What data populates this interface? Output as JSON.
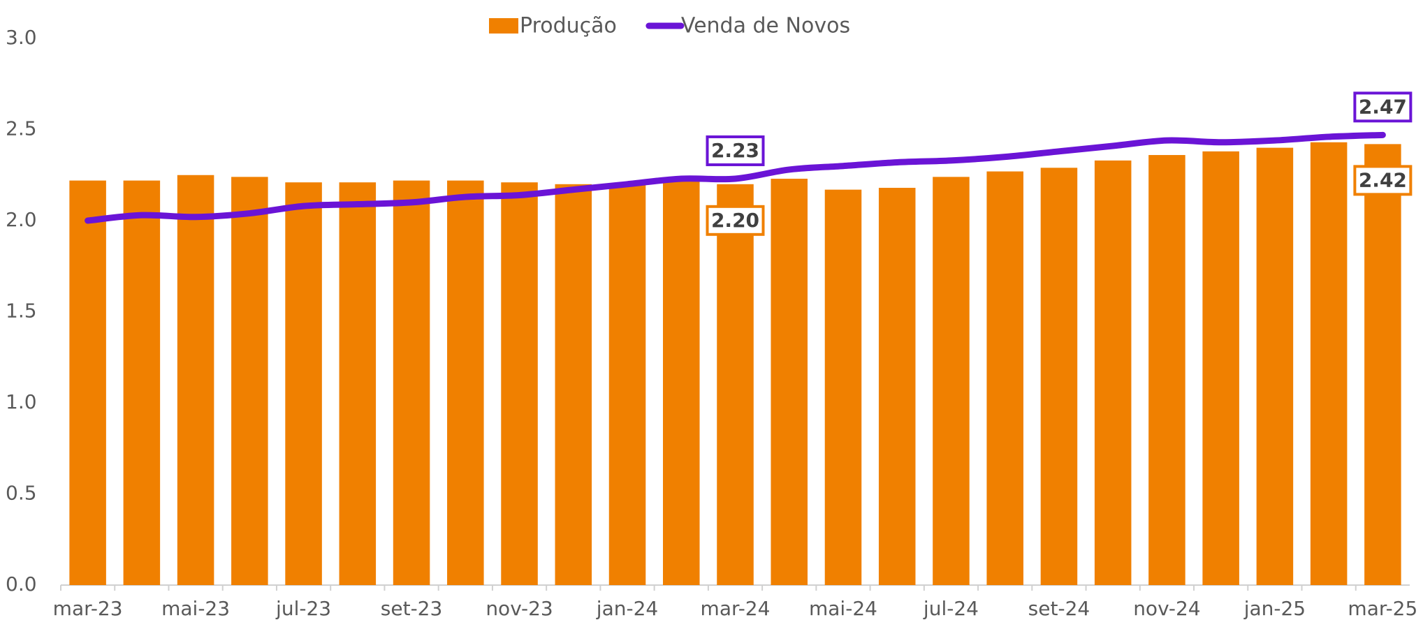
{
  "chart_data": {
    "type": "bar-line",
    "categories": [
      "mar-23",
      null,
      "mai-23",
      null,
      "jul-23",
      null,
      "set-23",
      null,
      "nov-23",
      null,
      "jan-24",
      null,
      "mar-24",
      null,
      "mai-24",
      null,
      "jul-24",
      null,
      "set-24",
      null,
      "nov-24",
      null,
      "jan-25",
      null,
      "mar-25"
    ],
    "series": [
      {
        "name": "Produção",
        "type": "bar",
        "color": "#f08000",
        "values": [
          2.22,
          2.22,
          2.25,
          2.24,
          2.21,
          2.21,
          2.22,
          2.22,
          2.21,
          2.2,
          2.2,
          2.23,
          2.2,
          2.23,
          2.17,
          2.18,
          2.24,
          2.27,
          2.29,
          2.33,
          2.36,
          2.38,
          2.4,
          2.43,
          2.42
        ],
        "value_labels": [
          null,
          null,
          null,
          null,
          null,
          null,
          null,
          null,
          null,
          null,
          null,
          null,
          "2.20",
          null,
          null,
          null,
          null,
          null,
          null,
          null,
          null,
          null,
          null,
          null,
          "2.42"
        ]
      },
      {
        "name": "Venda de Novos",
        "type": "line",
        "color": "#6a14d6",
        "values": [
          2.0,
          2.03,
          2.02,
          2.04,
          2.08,
          2.09,
          2.1,
          2.13,
          2.14,
          2.17,
          2.2,
          2.23,
          2.23,
          2.28,
          2.3,
          2.32,
          2.33,
          2.35,
          2.38,
          2.41,
          2.44,
          2.43,
          2.44,
          2.46,
          2.47
        ],
        "value_labels": [
          null,
          null,
          null,
          null,
          null,
          null,
          null,
          null,
          null,
          null,
          null,
          null,
          "2.23",
          null,
          null,
          null,
          null,
          null,
          null,
          null,
          null,
          null,
          null,
          null,
          "2.47"
        ]
      }
    ],
    "ylim": [
      0,
      3
    ],
    "yticks": [
      {
        "value": 0,
        "label": "0.0"
      },
      0.5,
      {
        "value": 1,
        "label": "1.0"
      },
      1.5,
      {
        "value": 2,
        "label": "2.0"
      },
      2.5,
      {
        "value": 3,
        "label": "3.0"
      }
    ],
    "grid": false,
    "legend": "top"
  }
}
